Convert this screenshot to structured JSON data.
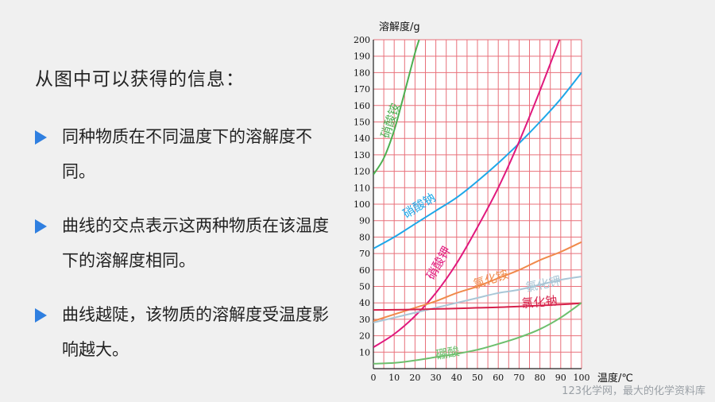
{
  "slide": {
    "heading": "从图中可以获得的信息：",
    "bullets": [
      "同种物质在不同温度下的溶解度不同。",
      "曲线的交点表示这两种物质在该温度下的溶解度相同。",
      "曲线越陡，该物质的溶解度受温度影响越大。"
    ],
    "accent_color": "#2f7fe0",
    "watermark": "123化学网，最大的化学资料库"
  },
  "chart_data": {
    "type": "line",
    "xlabel": "温度/℃",
    "ylabel": "溶解度/g",
    "xlim": [
      0,
      100
    ],
    "ylim": [
      0,
      200
    ],
    "x_ticks": [
      0,
      10,
      20,
      30,
      40,
      50,
      60,
      70,
      80,
      90,
      100
    ],
    "y_ticks": [
      10,
      20,
      30,
      40,
      50,
      60,
      70,
      80,
      90,
      100,
      110,
      120,
      130,
      140,
      150,
      160,
      170,
      180,
      190,
      200
    ],
    "grid": true,
    "grid_color": "#e8707a",
    "legend": "labels placed along curves",
    "series": [
      {
        "name": "硝酸铵",
        "color": "#4caf50",
        "label_at": [
          10,
          150
        ],
        "label_rotate": -72,
        "points": [
          [
            0,
            118
          ],
          [
            5,
            128
          ],
          [
            10,
            145
          ],
          [
            15,
            168
          ],
          [
            20,
            192
          ],
          [
            22,
            200
          ]
        ]
      },
      {
        "name": "硝酸钠",
        "color": "#1ea7e8",
        "label_at": [
          23,
          97
        ],
        "label_rotate": -32,
        "points": [
          [
            0,
            73
          ],
          [
            10,
            80
          ],
          [
            20,
            88
          ],
          [
            30,
            96
          ],
          [
            40,
            104
          ],
          [
            50,
            114
          ],
          [
            60,
            125
          ],
          [
            70,
            137
          ],
          [
            80,
            150
          ],
          [
            90,
            164
          ],
          [
            100,
            180
          ]
        ]
      },
      {
        "name": "硝酸钾",
        "color": "#e0197d",
        "label_at": [
          33,
          63
        ],
        "label_rotate": -60,
        "points": [
          [
            0,
            13
          ],
          [
            10,
            21
          ],
          [
            20,
            32
          ],
          [
            30,
            46
          ],
          [
            40,
            64
          ],
          [
            50,
            86
          ],
          [
            60,
            110
          ],
          [
            70,
            138
          ],
          [
            80,
            169
          ],
          [
            90,
            202
          ]
        ]
      },
      {
        "name": "氯化铵",
        "color": "#f08a4b",
        "label_at": [
          57,
          52
        ],
        "label_rotate": -18,
        "points": [
          [
            0,
            29
          ],
          [
            10,
            33
          ],
          [
            20,
            37
          ],
          [
            30,
            41
          ],
          [
            40,
            46
          ],
          [
            50,
            50
          ],
          [
            60,
            55
          ],
          [
            70,
            60
          ],
          [
            80,
            66
          ],
          [
            90,
            71
          ],
          [
            100,
            77
          ]
        ]
      },
      {
        "name": "氯化钾",
        "color": "#a9c6d6",
        "label_at": [
          82,
          49
        ],
        "label_rotate": -12,
        "points": [
          [
            0,
            28
          ],
          [
            10,
            31
          ],
          [
            20,
            34
          ],
          [
            30,
            37
          ],
          [
            40,
            40
          ],
          [
            50,
            43
          ],
          [
            60,
            46
          ],
          [
            70,
            48
          ],
          [
            80,
            51
          ],
          [
            90,
            54
          ],
          [
            100,
            56
          ]
        ]
      },
      {
        "name": "氯化钠",
        "color": "#d6214b",
        "label_at": [
          80,
          38
        ],
        "label_rotate": -5,
        "points": [
          [
            0,
            35.7
          ],
          [
            10,
            35.8
          ],
          [
            20,
            36
          ],
          [
            30,
            36.3
          ],
          [
            40,
            36.6
          ],
          [
            50,
            37
          ],
          [
            60,
            37.3
          ],
          [
            70,
            37.8
          ],
          [
            80,
            38.4
          ],
          [
            90,
            39
          ],
          [
            100,
            39.8
          ]
        ]
      },
      {
        "name": "硼酸",
        "color": "#6dbf6d",
        "label_at": [
          36,
          7
        ],
        "label_rotate": -10,
        "points": [
          [
            0,
            3
          ],
          [
            10,
            3.5
          ],
          [
            20,
            5
          ],
          [
            30,
            7
          ],
          [
            40,
            9
          ],
          [
            50,
            11.5
          ],
          [
            60,
            15
          ],
          [
            70,
            19
          ],
          [
            80,
            24
          ],
          [
            90,
            31
          ],
          [
            100,
            40
          ]
        ]
      }
    ]
  }
}
